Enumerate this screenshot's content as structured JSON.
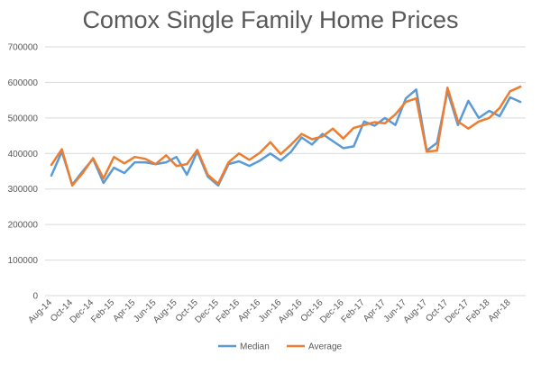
{
  "chart_data": {
    "type": "line",
    "title": "Comox Single Family Home Prices",
    "xlabel": "",
    "ylabel": "",
    "ylim": [
      0,
      700000
    ],
    "yticks": [
      0,
      100000,
      200000,
      300000,
      400000,
      500000,
      600000,
      700000
    ],
    "grid": true,
    "legend_position": "bottom",
    "categories": [
      "Aug-14",
      "Sep-14",
      "Oct-14",
      "Nov-14",
      "Dec-14",
      "Jan-15",
      "Feb-15",
      "Mar-15",
      "Apr-15",
      "May-15",
      "Jun-15",
      "Jul-15",
      "Aug-15",
      "Sep-15",
      "Oct-15",
      "Nov-15",
      "Dec-15",
      "Jan-16",
      "Feb-16",
      "Mar-16",
      "Apr-16",
      "May-16",
      "Jun-16",
      "Jul-16",
      "Aug-16",
      "Sep-16",
      "Oct-16",
      "Nov-16",
      "Dec-16",
      "Jan-17",
      "Feb-17",
      "Mar-17",
      "Apr-17",
      "May-17",
      "Jun-17",
      "Jul-17",
      "Aug-17",
      "Sep-17",
      "Oct-17",
      "Nov-17",
      "Dec-17",
      "Jan-18",
      "Feb-18",
      "Mar-18",
      "Apr-18",
      "May-18"
    ],
    "x_tick_labels": [
      "Aug-14",
      "Oct-14",
      "Dec-14",
      "Feb-15",
      "Apr-15",
      "Jun-15",
      "Aug-15",
      "Oct-15",
      "Dec-15",
      "Feb-16",
      "Apr-16",
      "Jun-16",
      "Aug-16",
      "Oct-16",
      "Dec-16",
      "Feb-17",
      "Apr-17",
      "Jun-17",
      "Aug-17",
      "Oct-17",
      "Dec-17",
      "Feb-18",
      "Apr-18"
    ],
    "series": [
      {
        "name": "Median",
        "color": "#5b9bd5",
        "values": [
          338000,
          405000,
          312000,
          350000,
          385000,
          317000,
          360000,
          345000,
          375000,
          375000,
          370000,
          375000,
          390000,
          340000,
          405000,
          335000,
          310000,
          370000,
          378000,
          365000,
          380000,
          400000,
          380000,
          405000,
          445000,
          425000,
          455000,
          435000,
          415000,
          420000,
          490000,
          478000,
          500000,
          480000,
          555000,
          580000,
          408000,
          430000,
          575000,
          480000,
          548000,
          500000,
          520000,
          505000,
          558000,
          545000
        ]
      },
      {
        "name": "Average",
        "color": "#ed7d31",
        "values": [
          368000,
          412000,
          310000,
          345000,
          387000,
          330000,
          390000,
          372000,
          390000,
          385000,
          370000,
          395000,
          365000,
          370000,
          410000,
          340000,
          315000,
          375000,
          400000,
          382000,
          402000,
          432000,
          398000,
          425000,
          455000,
          440000,
          448000,
          470000,
          442000,
          472000,
          480000,
          488000,
          485000,
          510000,
          545000,
          555000,
          405000,
          408000,
          585000,
          490000,
          470000,
          490000,
          500000,
          528000,
          575000,
          588000
        ]
      }
    ]
  }
}
